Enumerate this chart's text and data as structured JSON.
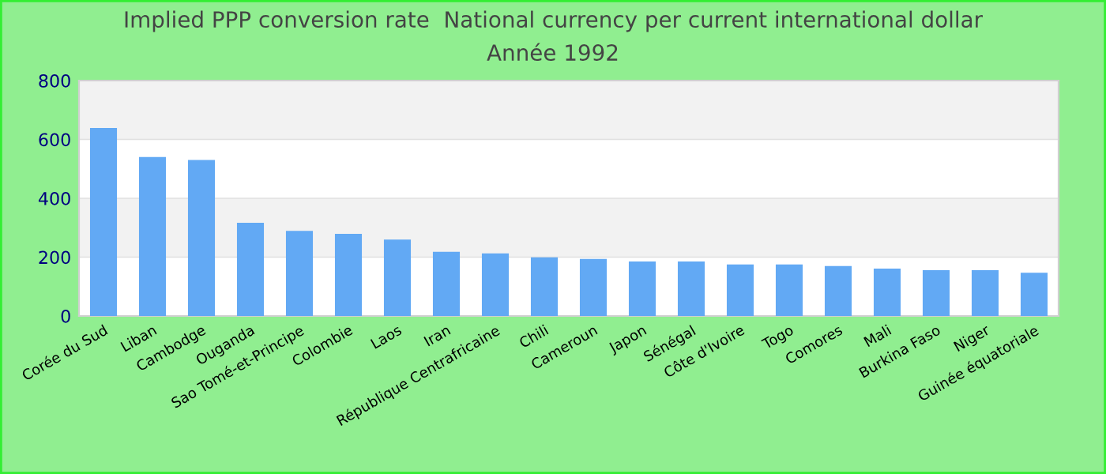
{
  "chart_data": {
    "type": "bar",
    "title": "Implied PPP conversion rate  National currency per current international dollar",
    "subtitle": "Année 1992",
    "categories": [
      "Corée du Sud",
      "Liban",
      "Cambodge",
      "Ouganda",
      "Sao Tomé-et-Principe",
      "Colombie",
      "Laos",
      "Iran",
      "République Centrafricaine",
      "Chili",
      "Cameroun",
      "Japon",
      "Sénégal",
      "Côte d'Ivoire",
      "Togo",
      "Comores",
      "Mali",
      "Burkina Faso",
      "Niger",
      "Guinée équatoriale"
    ],
    "values": [
      639,
      540,
      530,
      317,
      289,
      279,
      260,
      218,
      213,
      199,
      194,
      185,
      185,
      175,
      175,
      170,
      161,
      156,
      156,
      147
    ],
    "color": "#62a9f4",
    "ylim": [
      0,
      800
    ],
    "yticks": [
      0,
      200,
      400,
      600,
      800
    ],
    "grid": "y",
    "legend": false
  }
}
